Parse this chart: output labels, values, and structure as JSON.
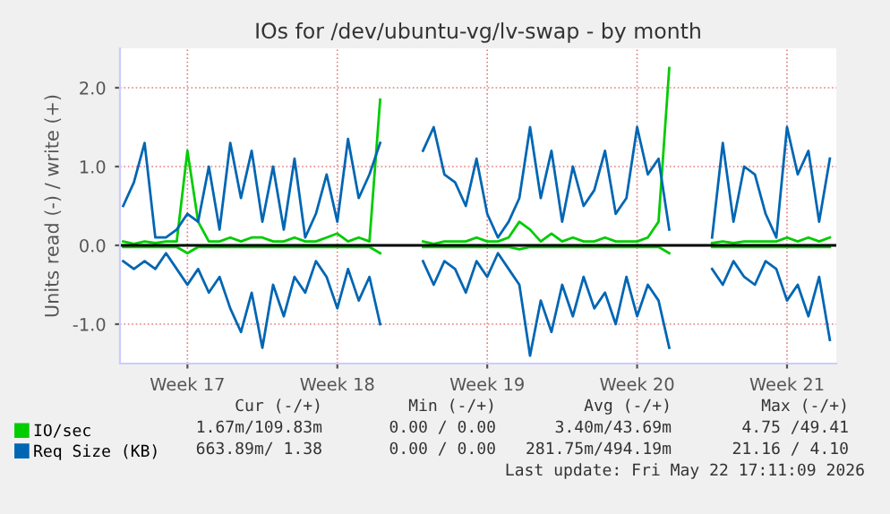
{
  "chart_data": {
    "type": "line",
    "title": "IOs for /dev/ubuntu-vg/lv-swap - by month",
    "ylabel": "Units read (-) / write (+)",
    "categories": [
      null,
      null,
      null,
      null,
      null,
      null,
      "Week 17",
      null,
      null,
      null,
      null,
      null,
      null,
      null,
      null,
      null,
      null,
      null,
      null,
      null,
      "Week 18",
      null,
      null,
      null,
      null,
      null,
      null,
      null,
      null,
      null,
      null,
      null,
      null,
      null,
      "Week 19",
      null,
      null,
      null,
      null,
      null,
      null,
      null,
      null,
      null,
      null,
      null,
      null,
      null,
      "Week 20",
      null,
      null,
      null,
      null,
      null,
      null,
      null,
      null,
      null,
      null,
      null,
      null,
      null,
      "Week 21",
      null,
      null,
      null,
      null
    ],
    "series": [
      {
        "name": "IO/sec",
        "color": "#00cc00",
        "values": [
          0.05,
          0.02,
          0.05,
          0.03,
          0.05,
          0.05,
          1.2,
          0.3,
          0.05,
          0.05,
          0.1,
          0.05,
          0.1,
          0.1,
          0.05,
          0.05,
          0.1,
          0.05,
          0.05,
          0.1,
          0.15,
          0.05,
          0.1,
          0.05,
          1.85,
          null,
          null,
          null,
          0.05,
          0.02,
          0.05,
          0.05,
          0.05,
          0.1,
          0.05,
          0.05,
          0.1,
          0.3,
          0.2,
          0.05,
          0.15,
          0.05,
          0.1,
          0.05,
          0.05,
          0.1,
          0.05,
          0.05,
          0.05,
          0.1,
          0.3,
          2.25,
          null,
          null,
          null,
          0.03,
          0.05,
          0.03,
          0.05,
          0.05,
          0.05,
          0.05,
          0.1,
          0.05,
          0.1,
          0.05,
          0.1
        ]
      },
      {
        "color": "#00cc00",
        "values": [
          -0.02,
          -0.02,
          -0.02,
          -0.02,
          -0.02,
          -0.02,
          -0.1,
          -0.02,
          -0.02,
          -0.02,
          -0.02,
          -0.02,
          -0.02,
          -0.02,
          -0.02,
          -0.02,
          -0.02,
          -0.02,
          -0.02,
          -0.02,
          -0.02,
          -0.02,
          -0.02,
          -0.02,
          -0.1,
          null,
          null,
          null,
          -0.02,
          -0.02,
          -0.02,
          -0.02,
          -0.02,
          -0.02,
          -0.02,
          -0.02,
          -0.02,
          -0.05,
          -0.02,
          -0.02,
          -0.02,
          -0.02,
          -0.02,
          -0.02,
          -0.02,
          -0.02,
          -0.02,
          -0.02,
          -0.02,
          -0.02,
          -0.02,
          -0.1,
          null,
          null,
          null,
          -0.02,
          -0.02,
          -0.02,
          -0.02,
          -0.02,
          -0.02,
          -0.02,
          -0.02,
          -0.02,
          -0.02,
          -0.02,
          -0.02
        ]
      },
      {
        "name": "Req Size (KB)",
        "color": "#0066b3",
        "values": [
          0.5,
          0.8,
          1.3,
          0.1,
          0.1,
          0.2,
          0.4,
          0.3,
          1.0,
          0.2,
          1.3,
          0.6,
          1.2,
          0.3,
          1.0,
          0.2,
          1.1,
          0.1,
          0.4,
          0.9,
          0.3,
          1.35,
          0.6,
          0.9,
          1.3,
          null,
          null,
          null,
          1.2,
          1.5,
          0.9,
          0.8,
          0.5,
          1.1,
          0.4,
          0.1,
          0.3,
          0.6,
          1.5,
          0.6,
          1.2,
          0.3,
          1.0,
          0.5,
          0.7,
          1.2,
          0.4,
          0.6,
          1.5,
          0.9,
          1.1,
          0.2,
          null,
          null,
          null,
          0.1,
          1.3,
          0.3,
          1.0,
          0.9,
          0.4,
          0.1,
          1.5,
          0.9,
          1.2,
          0.3,
          1.1
        ]
      },
      {
        "color": "#0066b3",
        "values": [
          -0.2,
          -0.3,
          -0.2,
          -0.3,
          -0.1,
          -0.3,
          -0.5,
          -0.3,
          -0.6,
          -0.4,
          -0.8,
          -1.1,
          -0.6,
          -1.3,
          -0.5,
          -0.9,
          -0.4,
          -0.6,
          -0.2,
          -0.4,
          -0.8,
          -0.3,
          -0.7,
          -0.4,
          -1.0,
          null,
          null,
          null,
          -0.2,
          -0.5,
          -0.2,
          -0.3,
          -0.6,
          -0.2,
          -0.4,
          -0.1,
          -0.3,
          -0.5,
          -1.4,
          -0.7,
          -1.1,
          -0.5,
          -0.9,
          -0.4,
          -0.8,
          -0.6,
          -1.0,
          -0.4,
          -0.9,
          -0.5,
          -0.7,
          -1.3,
          null,
          null,
          null,
          -0.3,
          -0.5,
          -0.2,
          -0.4,
          -0.5,
          -0.2,
          -0.3,
          -0.7,
          -0.5,
          -0.9,
          -0.4,
          -1.2
        ]
      }
    ],
    "ylim": [
      -1.5,
      2.5
    ],
    "yticks": [
      {
        "value": -1,
        "label": "-1.0"
      },
      {
        "value": 0,
        "label": "0.0"
      },
      {
        "value": 1,
        "label": "1.0"
      },
      {
        "value": 2,
        "label": "2.0"
      }
    ],
    "ref_lines": [
      {
        "axis": "y",
        "value": 0,
        "color": "#000000"
      }
    ],
    "grid": true,
    "legend": "bottom left",
    "line_style": "solid",
    "annotations": [
      "Cur (-/+)",
      "Min (-/+)",
      "Avg (-/+)",
      "Max (-/+)",
      "1.67m/109.83m",
      "0.00 / 0.00",
      "3.40m/43.69m",
      "4.75 /49.41",
      "663.89m/ 1.38",
      "0.00 / 0.00",
      "281.75m/494.19m",
      "21.16 / 4.10",
      "Last update: Fri May 22 17:11:09 2026"
    ]
  }
}
